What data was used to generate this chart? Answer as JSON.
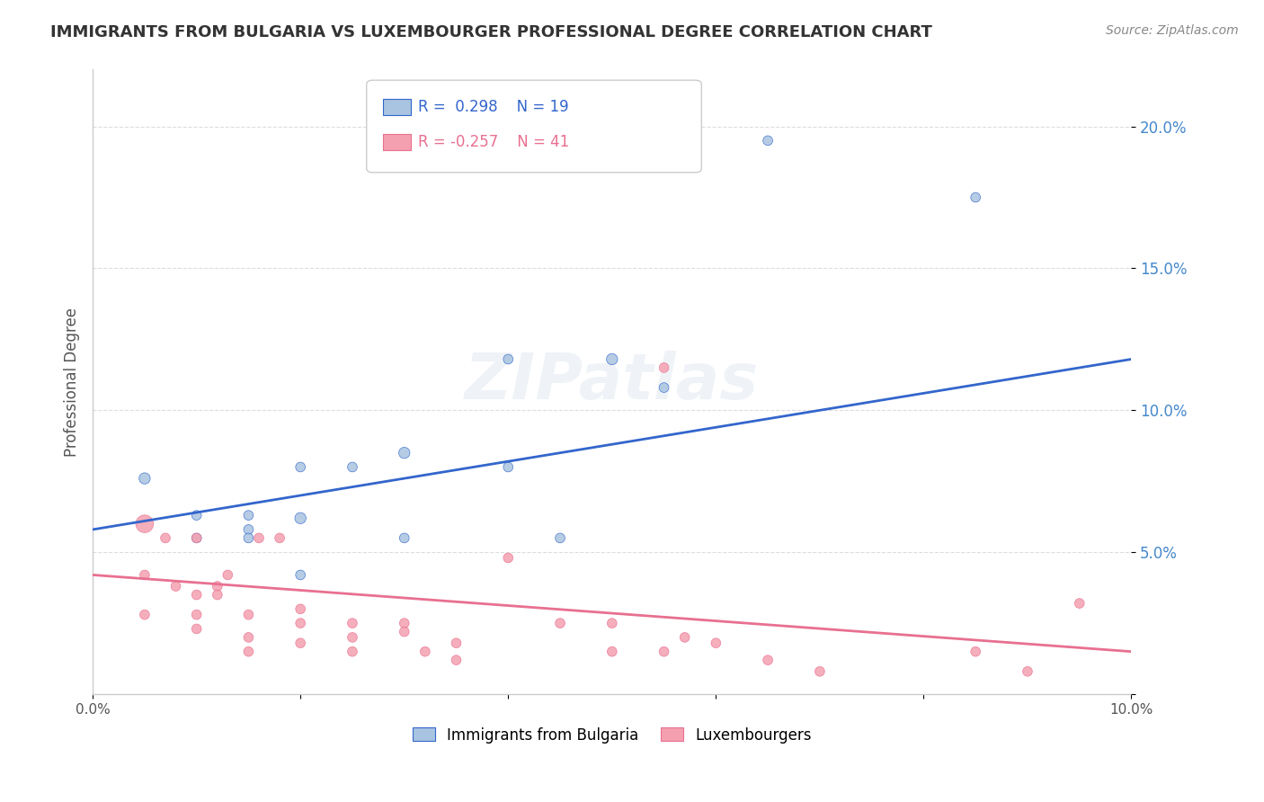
{
  "title": "IMMIGRANTS FROM BULGARIA VS LUXEMBOURGER PROFESSIONAL DEGREE CORRELATION CHART",
  "source": "Source: ZipAtlas.com",
  "ylabel_left": "Professional Degree",
  "xlim": [
    0.0,
    0.1
  ],
  "ylim": [
    0.0,
    0.22
  ],
  "xticks": [
    0.0,
    0.02,
    0.04,
    0.06,
    0.08,
    0.1
  ],
  "xtick_labels": [
    "0.0%",
    "",
    "",
    "",
    "",
    "10.0%"
  ],
  "yticks_right": [
    0.0,
    0.05,
    0.1,
    0.15,
    0.2
  ],
  "ytick_labels_right": [
    "",
    "5.0%",
    "10.0%",
    "15.0%",
    "20.0%"
  ],
  "legend_r1": "R =  0.298",
  "legend_n1": "N = 19",
  "legend_r2": "R = -0.257",
  "legend_n2": "N = 41",
  "bulgaria_color": "#a8c4e0",
  "luxembourg_color": "#f4a0b0",
  "bulgaria_line_color": "#3366cc",
  "luxembourg_line_color": "#e87090",
  "watermark": "ZIPatlas",
  "background_color": "#ffffff",
  "grid_color": "#dddddd",
  "blue_scatter_x": [
    0.005,
    0.01,
    0.01,
    0.015,
    0.015,
    0.015,
    0.02,
    0.02,
    0.02,
    0.025,
    0.03,
    0.03,
    0.04,
    0.04,
    0.045,
    0.05,
    0.055,
    0.065,
    0.085
  ],
  "blue_scatter_y": [
    0.076,
    0.063,
    0.055,
    0.063,
    0.058,
    0.055,
    0.062,
    0.08,
    0.042,
    0.08,
    0.085,
    0.055,
    0.118,
    0.08,
    0.055,
    0.118,
    0.108,
    0.195,
    0.175
  ],
  "blue_scatter_size": [
    80,
    60,
    60,
    60,
    60,
    60,
    80,
    60,
    60,
    60,
    80,
    60,
    60,
    60,
    60,
    80,
    60,
    60,
    60
  ],
  "pink_scatter_x": [
    0.005,
    0.005,
    0.005,
    0.007,
    0.008,
    0.01,
    0.01,
    0.01,
    0.01,
    0.012,
    0.012,
    0.013,
    0.015,
    0.015,
    0.015,
    0.016,
    0.018,
    0.02,
    0.02,
    0.02,
    0.025,
    0.025,
    0.025,
    0.03,
    0.03,
    0.032,
    0.035,
    0.035,
    0.04,
    0.045,
    0.05,
    0.05,
    0.055,
    0.055,
    0.057,
    0.06,
    0.065,
    0.07,
    0.085,
    0.09,
    0.095
  ],
  "pink_scatter_y": [
    0.06,
    0.042,
    0.028,
    0.055,
    0.038,
    0.055,
    0.035,
    0.028,
    0.023,
    0.038,
    0.035,
    0.042,
    0.028,
    0.02,
    0.015,
    0.055,
    0.055,
    0.03,
    0.025,
    0.018,
    0.025,
    0.02,
    0.015,
    0.025,
    0.022,
    0.015,
    0.018,
    0.012,
    0.048,
    0.025,
    0.025,
    0.015,
    0.115,
    0.015,
    0.02,
    0.018,
    0.012,
    0.008,
    0.015,
    0.008,
    0.032
  ],
  "pink_scatter_size": [
    200,
    60,
    60,
    60,
    60,
    60,
    60,
    60,
    60,
    60,
    60,
    60,
    60,
    60,
    60,
    60,
    60,
    60,
    60,
    60,
    60,
    60,
    60,
    60,
    60,
    60,
    60,
    60,
    60,
    60,
    60,
    60,
    60,
    60,
    60,
    60,
    60,
    60,
    60,
    60,
    60
  ],
  "blue_line_x": [
    0.0,
    0.1
  ],
  "blue_line_y": [
    0.058,
    0.118
  ],
  "pink_line_x": [
    0.0,
    0.1
  ],
  "pink_line_y": [
    0.042,
    0.015
  ]
}
